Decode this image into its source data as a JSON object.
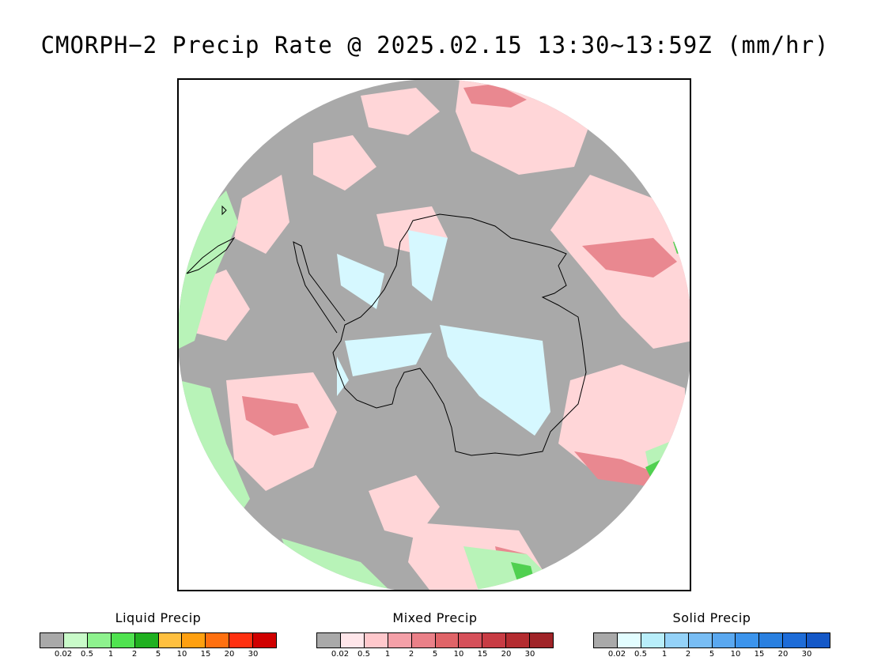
{
  "title": "CMORPH−2 Precip Rate @ 2025.02.15 13:30~13:59Z (mm/hr)",
  "map": {
    "projection": "south-polar-stereographic",
    "region": "Antarctica / Southern Ocean",
    "background_no_precip_color": "#a9a9a9"
  },
  "legends": [
    {
      "name": "liquid",
      "title": "Liquid Precip",
      "colors": [
        "#a9a9a9",
        "#c9fbc9",
        "#8ef28e",
        "#50e350",
        "#20b020",
        "#ffc040",
        "#ffa010",
        "#ff7010",
        "#ff3010",
        "#d00000"
      ],
      "ticks": [
        "0.02",
        "0.5",
        "1",
        "2",
        "5",
        "10",
        "15",
        "20",
        "30"
      ]
    },
    {
      "name": "mixed",
      "title": "Mixed Precip",
      "colors": [
        "#a9a9a9",
        "#ffe6ea",
        "#ffc8cc",
        "#f4a0a8",
        "#ea8088",
        "#e06468",
        "#d6505a",
        "#c83c44",
        "#b42c30",
        "#a02428"
      ],
      "ticks": [
        "0.02",
        "0.5",
        "1",
        "2",
        "5",
        "10",
        "15",
        "20",
        "30"
      ]
    },
    {
      "name": "solid",
      "title": "Solid Precip",
      "colors": [
        "#a9a9a9",
        "#e2fdff",
        "#b8eefa",
        "#94d2f8",
        "#78bdf4",
        "#5aa8f0",
        "#3c94ec",
        "#2a80e0",
        "#1e6cd8",
        "#1458c8"
      ],
      "ticks": [
        "0.02",
        "0.5",
        "1",
        "2",
        "5",
        "10",
        "15",
        "20",
        "30"
      ]
    }
  ]
}
